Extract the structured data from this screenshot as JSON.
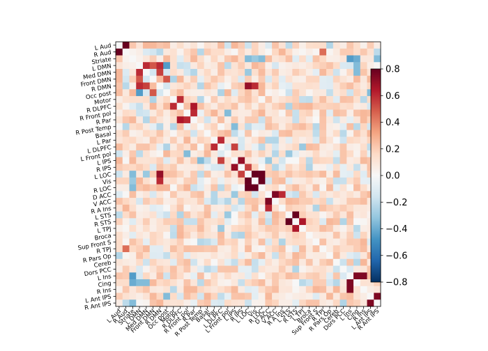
{
  "chart_data": {
    "type": "heatmap",
    "title": "",
    "xlabel": "",
    "ylabel": "",
    "labels": [
      "L Aud",
      "R Aud",
      "Striate",
      "L DMN",
      "Med DMN",
      "Front DMN",
      "R DMN",
      "Occ post",
      "Motor",
      "R DLPFC",
      "R Front pol",
      "R Par",
      "R Post Temp",
      "Basal",
      "L Par",
      "L DLPFC",
      "L Front pol",
      "L IPS",
      "R IPS",
      "L LOC",
      "Vis",
      "R LOC",
      "D ACC",
      "V ACC",
      "R A Ins",
      "L STS",
      "R STS",
      "L TPJ",
      "Broca",
      "Sup Front S",
      "R TPJ",
      "R Pars Op",
      "Cereb",
      "Dors PCC",
      "L Ins",
      "Cing",
      "R Ins",
      "L Ant IPS",
      "R Ant IPS"
    ],
    "diagonal": "white (0)",
    "estimated_strong_pairs": [
      {
        "a": "L Aud",
        "b": "R Aud",
        "value": 0.8
      },
      {
        "a": "L DMN",
        "b": "Med DMN",
        "value": 0.6
      },
      {
        "a": "L DMN",
        "b": "Front DMN",
        "value": 0.5
      },
      {
        "a": "L DMN",
        "b": "R DMN",
        "value": 0.6
      },
      {
        "a": "Med DMN",
        "b": "R DMN",
        "value": 0.55
      },
      {
        "a": "Motor",
        "b": "R DLPFC",
        "value": 0.6
      },
      {
        "a": "R DLPFC",
        "b": "R Par",
        "value": 0.65
      },
      {
        "a": "R Front pol",
        "b": "R Par",
        "value": 0.6
      },
      {
        "a": "L Par",
        "b": "L DLPFC",
        "value": 0.6
      },
      {
        "a": "L DLPFC",
        "b": "L IPS",
        "value": 0.55
      },
      {
        "a": "L IPS",
        "b": "R IPS",
        "value": 0.7
      },
      {
        "a": "R IPS",
        "b": "L LOC",
        "value": 0.55
      },
      {
        "a": "L LOC",
        "b": "Vis",
        "value": 0.85
      },
      {
        "a": "L LOC",
        "b": "R LOC",
        "value": 0.8
      },
      {
        "a": "Vis",
        "b": "R LOC",
        "value": 0.8
      },
      {
        "a": "D ACC",
        "b": "V ACC",
        "value": 0.75
      },
      {
        "a": "D ACC",
        "b": "R A Ins",
        "value": 0.6
      },
      {
        "a": "L STS",
        "b": "R STS",
        "value": 0.9
      },
      {
        "a": "R STS",
        "b": "L TPJ",
        "value": 0.65
      },
      {
        "a": "L Ins",
        "b": "Cing",
        "value": 0.75
      },
      {
        "a": "L Ins",
        "b": "R Ins",
        "value": 0.75
      },
      {
        "a": "L Ant IPS",
        "b": "R Ant IPS",
        "value": 0.75
      },
      {
        "a": "R DMN",
        "b": "L LOC",
        "value": 0.7
      },
      {
        "a": "R DMN",
        "b": "Vis",
        "value": 0.6
      },
      {
        "a": "Front DMN",
        "b": "Occ post",
        "value": 0.5
      },
      {
        "a": "R Aud",
        "b": "R TPJ",
        "value": 0.45
      }
    ],
    "estimated_negative_pairs": [
      {
        "a": "Striate",
        "b": "L LOC",
        "value": -0.35
      },
      {
        "a": "Striate",
        "b": "Vis",
        "value": -0.3
      },
      {
        "a": "Striate",
        "b": "R LOC",
        "value": -0.35
      },
      {
        "a": "Striate",
        "b": "L Ins",
        "value": -0.45
      },
      {
        "a": "Striate",
        "b": "Cing",
        "value": -0.4
      },
      {
        "a": "Striate",
        "b": "R Ant IPS",
        "value": -0.35
      },
      {
        "a": "L DMN",
        "b": "Occ post",
        "value": -0.45
      },
      {
        "a": "Med DMN",
        "b": "L LOC",
        "value": -0.3
      },
      {
        "a": "L DMN",
        "b": "Cing",
        "value": -0.35
      },
      {
        "a": "Med DMN",
        "b": "Cing",
        "value": -0.35
      },
      {
        "a": "R Front pol",
        "b": "L Front pol",
        "value": -0.35
      },
      {
        "a": "R Post Temp",
        "b": "L IPS",
        "value": -0.35
      },
      {
        "a": "L Front pol",
        "b": "L STS",
        "value": -0.3
      },
      {
        "a": "L IPS",
        "b": "D ACC",
        "value": -0.3
      },
      {
        "a": "L DLPFC",
        "b": "L TPJ",
        "value": -0.3
      },
      {
        "a": "Occ post",
        "b": "L Ant IPS",
        "value": -0.35
      }
    ],
    "colorbar": {
      "colormap": "RdBu_r",
      "range": [
        -0.8,
        0.8
      ],
      "ticks": [
        0.8,
        0.6,
        0.4,
        0.2,
        0.0,
        -0.2,
        -0.4,
        -0.6,
        -0.8
      ],
      "tick_labels": [
        "0.8",
        "0.6",
        "0.4",
        "0.2",
        "0.0",
        "−0.2",
        "−0.4",
        "−0.6",
        "−0.8"
      ]
    },
    "grid": false,
    "legend": "colorbar right"
  }
}
